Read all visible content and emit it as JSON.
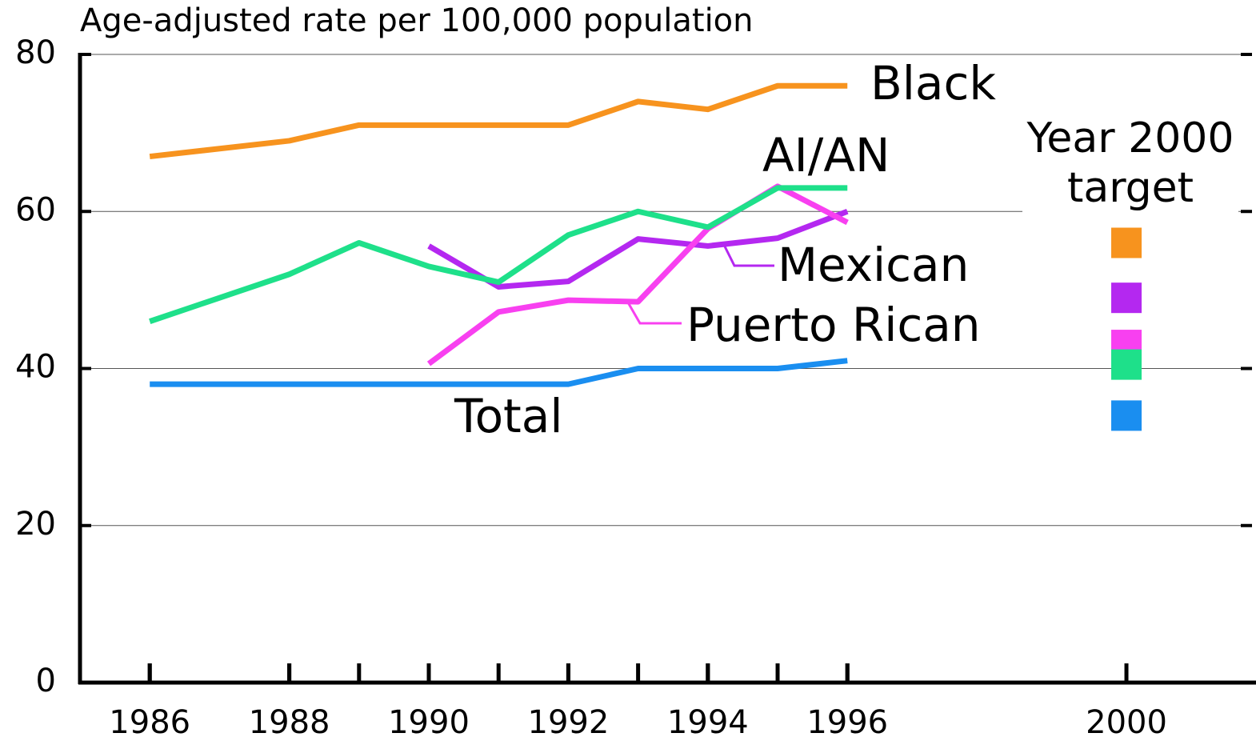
{
  "chart_data": {
    "type": "line",
    "y_axis_label": "Age-adjusted rate per 100,000 population",
    "legend_title": "Year 2000 target",
    "x": [
      1986,
      1988,
      1989,
      1990,
      1991,
      1992,
      1993,
      1994,
      1995,
      1996
    ],
    "series": [
      {
        "name": "Black",
        "color": "#f7931e",
        "values": [
          67,
          69,
          71,
          71,
          71,
          71,
          74,
          73,
          76,
          76
        ],
        "target": 56
      },
      {
        "name": "Mexican",
        "color": "#b428f0",
        "values": [
          null,
          null,
          null,
          55.6,
          50.4,
          51.1,
          56.5,
          55.6,
          56.6,
          60
        ],
        "target": 49
      },
      {
        "name": "Puerto Rican",
        "color": "#f840f0",
        "values": [
          null,
          null,
          null,
          40.6,
          47.2,
          48.7,
          48.5,
          57.8,
          63.2,
          58.6
        ],
        "target": 43
      },
      {
        "name": "AI/AN",
        "color": "#1ee08a",
        "values": [
          46,
          52,
          56,
          53,
          51,
          57,
          60,
          58,
          63,
          63
        ],
        "target": 40.5
      },
      {
        "name": "Total",
        "color": "#1a8ef0",
        "values": [
          38,
          38,
          38,
          38,
          38,
          38,
          40,
          40,
          40,
          41
        ],
        "target": 34
      }
    ],
    "target_x": 2000,
    "xlim": [
      1985,
      2001.8
    ],
    "xticks": [
      1986,
      1988,
      1990,
      1992,
      1994,
      1996,
      2000
    ],
    "ylim": [
      0,
      80
    ],
    "yticks": [
      0,
      20,
      40,
      60,
      80
    ],
    "grid": true
  }
}
